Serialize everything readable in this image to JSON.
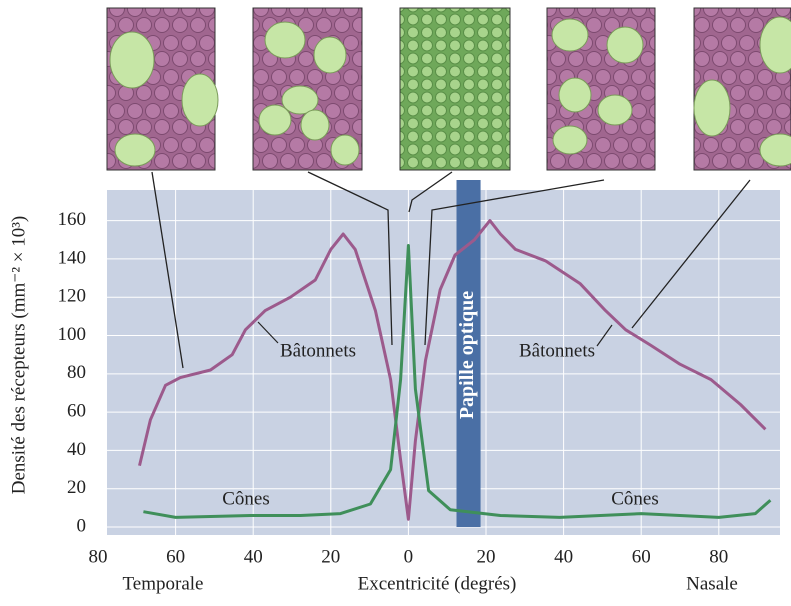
{
  "chart_data": {
    "type": "line",
    "xlabel": "Excentricité (degrés)",
    "ylabel": "Densité des récepteurs (mm⁻² × 10³)",
    "x_side_labels": [
      "Temporale",
      "Nasale"
    ],
    "annotations": [
      "Bâtonnets",
      "Bâtonnets",
      "Cônes",
      "Cônes"
    ],
    "optic_disc": {
      "label": "Papille optique",
      "range": [
        12.4,
        18.6
      ],
      "color": "#4a6fa5"
    },
    "series": [
      {
        "name": "Bâtonnets",
        "color": "#9c5a8c",
        "x": [
          -69.3,
          -66.5,
          -62.6,
          -58.8,
          -51,
          -45.4,
          -42,
          -36.9,
          -30.4,
          -24,
          -20,
          -16.8,
          -13.7,
          -8.5,
          -4.6,
          -2,
          0,
          1.8,
          4.4,
          8.2,
          12,
          17,
          21,
          23.7,
          27.6,
          35.3,
          44.3,
          50.8,
          56,
          62.4,
          70,
          78,
          85.6,
          92
        ],
        "values": [
          32,
          56,
          74,
          78,
          82,
          90,
          103,
          113,
          120,
          129,
          145,
          153,
          145,
          113,
          77,
          35,
          4,
          45,
          87,
          124,
          142,
          150,
          160,
          153,
          145,
          139,
          127,
          113,
          103,
          95,
          85,
          77,
          64,
          51
        ]
      },
      {
        "name": "Cônes",
        "color": "#3f8f5a",
        "x": [
          -68.3,
          -60,
          -40.7,
          -27.8,
          -17.5,
          -9.8,
          -4.6,
          -2,
          0,
          1.8,
          5.2,
          10.8,
          23.7,
          39,
          60,
          80,
          89.4,
          93.3
        ],
        "values": [
          8,
          5,
          6,
          6,
          7,
          12,
          30,
          77,
          147,
          72,
          19,
          9,
          6,
          5,
          7,
          5,
          7,
          14
        ]
      }
    ],
    "xlim": [
      -80,
      95
    ],
    "ylim": [
      0,
      176
    ],
    "xticks": [
      {
        "value": -80,
        "label": "80"
      },
      {
        "value": -60,
        "label": "60"
      },
      {
        "value": -40,
        "label": "40"
      },
      {
        "value": -20,
        "label": "20"
      },
      0,
      20,
      40,
      60,
      80
    ],
    "yticks": [
      0,
      20,
      40,
      60,
      80,
      100,
      120,
      140,
      160
    ],
    "grid": true
  }
}
